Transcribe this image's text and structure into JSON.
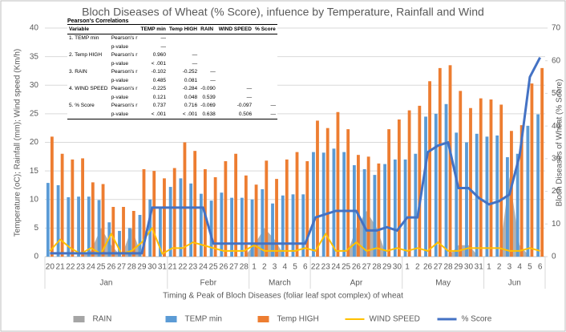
{
  "chart_data": {
    "type": "combo",
    "title": "Bloch Diseases of Wheat (% Score), infuence by Temperature, Rainfall and Wind",
    "x_label": "Timing & Peak of Bloch Diseases (foliar leaf spot complex) of wheat",
    "y_label": "Temperature (oC); Rainfall (mm); Wind speed (Km/h)",
    "y2_label": "Bloch Diseases of Wheat (% Score)",
    "category_groups": [
      {
        "label": "Jan",
        "categories": [
          "20",
          "21",
          "22",
          "23",
          "24",
          "25",
          "26",
          "27",
          "28",
          "29",
          "30",
          "31"
        ]
      },
      {
        "label": "Febr",
        "categories": [
          "21",
          "22",
          "23",
          "24",
          "25",
          "26",
          "27",
          "28"
        ]
      },
      {
        "label": "March",
        "categories": [
          "1",
          "2",
          "3",
          "4",
          "5",
          "6"
        ]
      },
      {
        "label": "Apr",
        "categories": [
          "22",
          "23",
          "24",
          "25",
          "26",
          "27",
          "28",
          "29",
          "30"
        ]
      },
      {
        "label": "May",
        "categories": [
          "1",
          "2",
          "26",
          "27",
          "28",
          "29",
          "30",
          "31"
        ]
      },
      {
        "label": "Jun",
        "categories": [
          "1",
          "2",
          "3",
          "4",
          "5",
          "6"
        ]
      }
    ],
    "ylim": [
      0,
      40
    ],
    "yticks": [
      0,
      5,
      10,
      15,
      20,
      25,
      30,
      35,
      40
    ],
    "y2lim": [
      0,
      70
    ],
    "y2ticks": [
      0,
      10,
      20,
      30,
      40,
      50,
      60,
      70
    ],
    "grid": true,
    "legend": "bottom",
    "series": [
      {
        "name": "RAIN",
        "type": "area",
        "color": "#a5a5a5",
        "values": [
          0,
          0,
          0,
          0,
          1,
          5,
          2,
          0,
          5,
          0,
          0,
          0,
          0,
          0,
          0,
          0,
          0,
          0,
          0,
          0,
          2,
          5,
          3,
          0,
          0,
          0,
          0,
          0,
          0,
          0,
          5,
          8,
          5,
          0,
          0,
          0,
          0,
          0,
          0,
          0,
          2,
          2,
          0,
          0,
          0,
          14,
          2,
          0,
          0
        ]
      },
      {
        "name": "TEMP min",
        "type": "bar",
        "color": "#5b9bd5",
        "values": [
          12.9,
          12.5,
          10.4,
          10.5,
          10.5,
          9.9,
          6,
          4.5,
          5,
          7.3,
          10,
          8.5,
          12.2,
          13.7,
          12.8,
          11,
          9.8,
          11.2,
          10.3,
          10.3,
          10,
          11.8,
          9.3,
          10.7,
          10.9,
          10.9,
          18.3,
          18.2,
          18.9,
          18.3,
          16,
          15.3,
          14.3,
          16.2,
          17,
          17,
          18,
          24.5,
          25,
          26.7,
          21.7,
          20,
          21.5,
          21,
          21.2,
          17.4,
          18,
          22.9,
          24.9
        ]
      },
      {
        "name": "Temp HIGH",
        "type": "bar",
        "color": "#ed7d31",
        "values": [
          21,
          18,
          17,
          17.2,
          13,
          12.7,
          8.7,
          8.7,
          8,
          15.3,
          15,
          13.7,
          15.5,
          20,
          18.5,
          15.3,
          13.9,
          16.7,
          18,
          14.2,
          12.6,
          16.8,
          13.6,
          17,
          18.3,
          16.7,
          23.8,
          22.5,
          25.3,
          22.3,
          17.8,
          17.5,
          16.3,
          22.3,
          24,
          25.6,
          26.4,
          30.7,
          33,
          33.5,
          29,
          26,
          27.7,
          27.5,
          26.6,
          22,
          23,
          30.3,
          33
        ]
      },
      {
        "name": "WIND SPEED",
        "type": "line",
        "color": "#ffc000",
        "values": [
          1,
          3,
          1.5,
          0.5,
          1.5,
          0.5,
          4,
          0.5,
          1,
          2.5,
          5,
          0.5,
          1.5,
          1.5,
          2.5,
          2,
          1.5,
          1,
          1,
          1,
          2,
          1,
          1,
          1,
          1,
          1.5,
          1,
          4,
          1,
          1,
          2.5,
          1,
          1.5,
          1,
          1.5,
          1,
          1.5,
          1,
          2.5,
          1,
          1,
          1.5,
          1.5,
          1.5,
          1.5,
          1,
          1,
          1.5,
          1
        ]
      },
      {
        "name": "% Score",
        "type": "line",
        "axis": "y2",
        "color": "#4472c4",
        "values": [
          1,
          1,
          1,
          1,
          1,
          1,
          1,
          1,
          1,
          1,
          15,
          15,
          15,
          15,
          15,
          15,
          4,
          4,
          4,
          4,
          4,
          4,
          4,
          4,
          4,
          4,
          12,
          13,
          14,
          14,
          14,
          8,
          8,
          9,
          8,
          12,
          12,
          32,
          34,
          35,
          21,
          21,
          18,
          16,
          17,
          19,
          31,
          55,
          61
        ]
      }
    ],
    "correlation_table": {
      "title": "Pearson's Correlations",
      "columns": [
        "Variable",
        "TEMP min",
        "Temp HIGH",
        "RAIN",
        "WIND SPEED",
        "% Score"
      ],
      "rows": [
        {
          "variable": "1. TEMP min",
          "stat": "Pearson's r",
          "cells": [
            "—"
          ]
        },
        {
          "stat": "p-value",
          "cells": [
            "—"
          ]
        },
        {
          "variable": "2. Temp HIGH",
          "stat": "Pearson's r",
          "cells": [
            "0.960",
            "—"
          ]
        },
        {
          "stat": "p-value",
          "cells": [
            "< .001",
            "—"
          ]
        },
        {
          "variable": "3. RAIN",
          "stat": "Pearson's r",
          "cells": [
            "-0.102",
            "-0.252",
            "—"
          ]
        },
        {
          "stat": "p-value",
          "cells": [
            "0.485",
            "0.081",
            "—"
          ]
        },
        {
          "variable": "4. WIND SPEED",
          "stat": "Pearson's r",
          "cells": [
            "-0.225",
            "-0.284",
            "-0.090",
            "—"
          ]
        },
        {
          "stat": "p-value",
          "cells": [
            "0.121",
            "0.048",
            "0.539",
            "—"
          ]
        },
        {
          "variable": "5. % Score",
          "stat": "Pearson's r",
          "cells": [
            "0.737",
            "0.716",
            "-0.069",
            "-0.097",
            "—"
          ]
        },
        {
          "stat": "p-value",
          "cells": [
            "< .001",
            "< .001",
            "0.638",
            "0.506",
            "—"
          ]
        }
      ]
    }
  }
}
